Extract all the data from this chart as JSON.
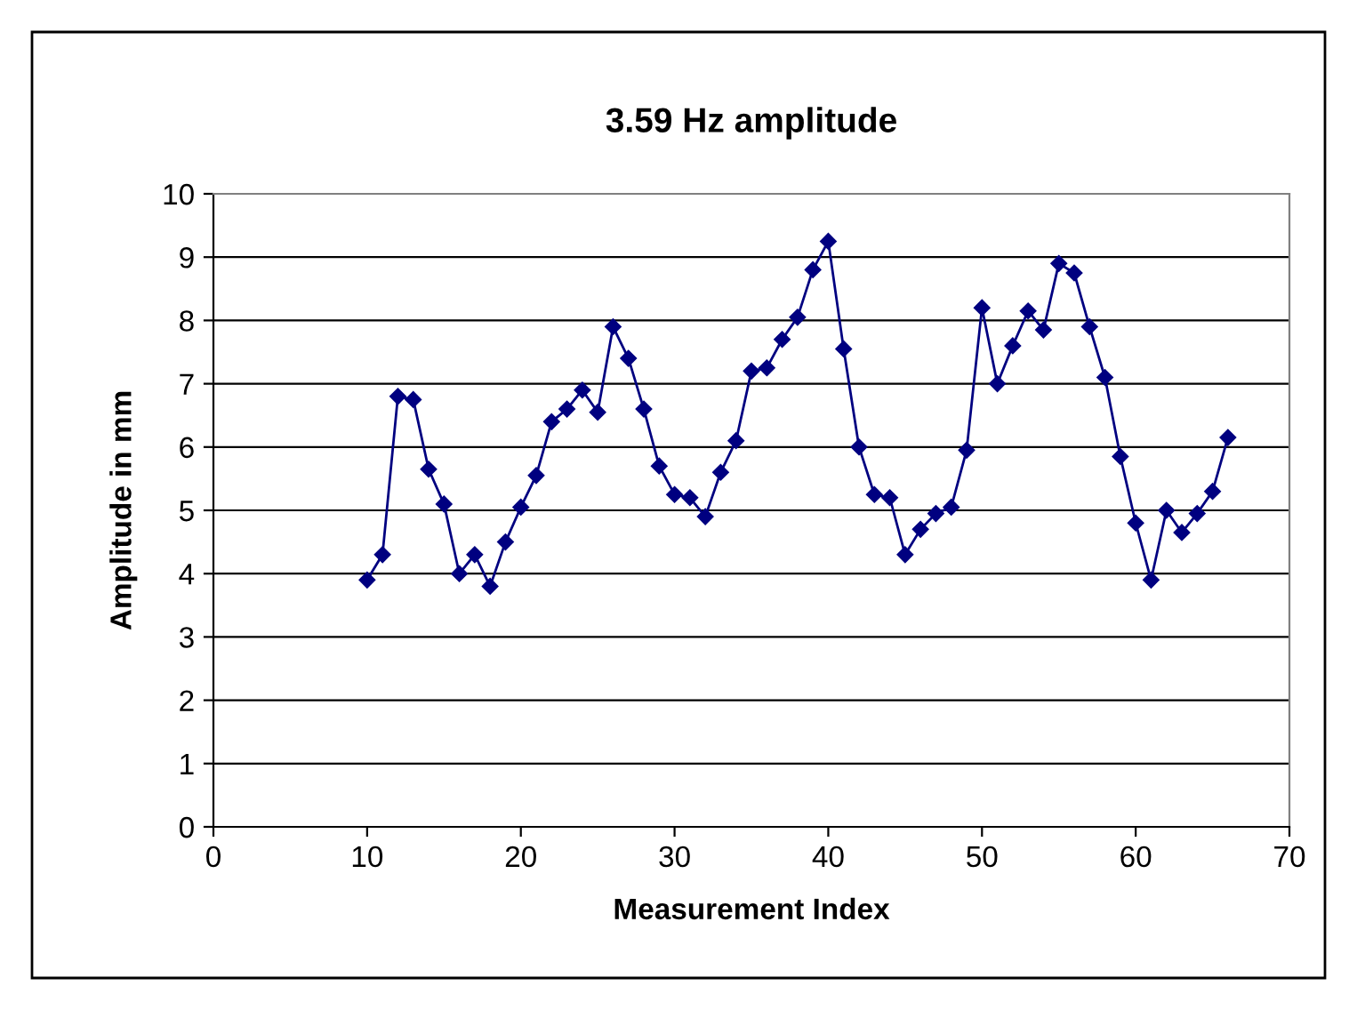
{
  "chart_data": {
    "type": "line",
    "title": "3.59 Hz amplitude",
    "xlabel": "Measurement Index",
    "ylabel": "Amplitude in mm",
    "xlim": [
      0,
      70
    ],
    "xticks": [
      0,
      10,
      20,
      30,
      40,
      50,
      60,
      70
    ],
    "ylim": [
      0,
      10
    ],
    "yticks": [
      0,
      1,
      2,
      3,
      4,
      5,
      6,
      7,
      8,
      9,
      10
    ],
    "grid": "y",
    "marker": "diamond",
    "line_style": "solid",
    "x": [
      10,
      11,
      12,
      13,
      14,
      15,
      16,
      17,
      18,
      19,
      20,
      21,
      22,
      23,
      24,
      25,
      26,
      27,
      28,
      29,
      30,
      31,
      32,
      33,
      34,
      35,
      36,
      37,
      38,
      39,
      40,
      41,
      42,
      43,
      44,
      45,
      46,
      47,
      48,
      49,
      50,
      51,
      52,
      53,
      54,
      55,
      56,
      57,
      58,
      59,
      60,
      61,
      62,
      63,
      64,
      65,
      66
    ],
    "series": [
      {
        "color": "#000080",
        "values": [
          3.9,
          4.3,
          6.8,
          6.75,
          5.65,
          5.1,
          4.0,
          4.3,
          3.8,
          4.5,
          5.05,
          5.55,
          6.4,
          6.6,
          6.9,
          6.55,
          7.9,
          7.4,
          6.6,
          5.7,
          5.25,
          5.2,
          4.9,
          5.6,
          6.1,
          7.2,
          7.25,
          7.7,
          8.05,
          8.8,
          9.25,
          7.55,
          6.0,
          5.25,
          5.2,
          4.3,
          4.7,
          4.95,
          5.05,
          5.95,
          8.2,
          7.0,
          7.6,
          8.15,
          7.85,
          8.9,
          8.75,
          7.9,
          7.1,
          5.85,
          4.8,
          3.9,
          5.0,
          4.65,
          4.95,
          5.3,
          6.15
        ]
      }
    ]
  }
}
